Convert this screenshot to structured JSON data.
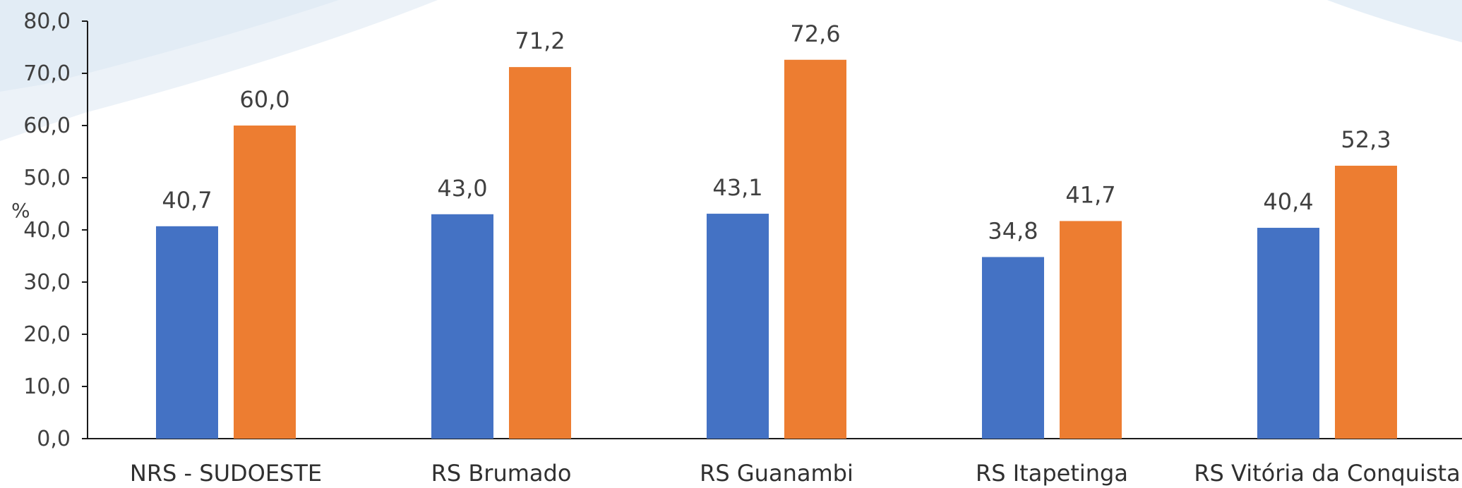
{
  "chart_data": {
    "type": "bar",
    "title": "",
    "xlabel": "",
    "ylabel": "%",
    "ylim": [
      0,
      80
    ],
    "yticks": [
      0,
      10,
      20,
      30,
      40,
      50,
      60,
      70,
      80
    ],
    "ytick_labels": [
      "0,0",
      "10,0",
      "20,0",
      "30,0",
      "40,0",
      "50,0",
      "60,0",
      "70,0",
      "80,0"
    ],
    "categories": [
      "NRS - SUDOESTE",
      "RS Brumado",
      "RS Guanambi",
      "RS Itapetinga",
      "RS Vitória da Conquista"
    ],
    "series": [
      {
        "color": "#4472C4",
        "values": [
          40.7,
          43.0,
          43.1,
          34.8,
          40.4
        ],
        "value_labels": [
          "40,7",
          "43,0",
          "43,1",
          "34,8",
          "40,4"
        ]
      },
      {
        "color": "#ED7D31",
        "values": [
          60.0,
          71.2,
          72.6,
          41.7,
          52.3
        ],
        "value_labels": [
          "60,0",
          "71,2",
          "72,6",
          "41,7",
          "52,3"
        ]
      }
    ],
    "grid": false,
    "legend": "none"
  },
  "background": {
    "swoosh_color": "#DCE8F3"
  }
}
